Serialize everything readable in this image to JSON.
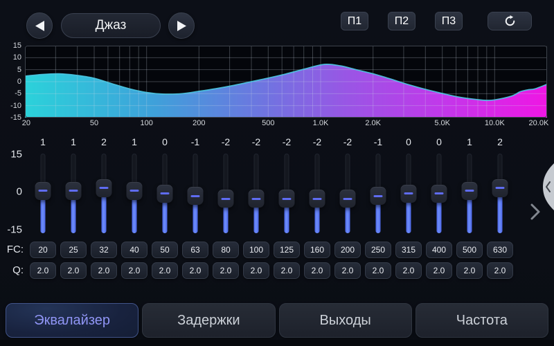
{
  "header": {
    "preset_name": "Джаз",
    "presets": [
      "П1",
      "П2",
      "П3"
    ]
  },
  "chart_data": {
    "type": "area",
    "title": "",
    "xlabel": "",
    "ylabel": "",
    "x_scale": "log",
    "xlim": [
      20,
      20000
    ],
    "ylim": [
      -15,
      15
    ],
    "grid": true,
    "y_ticks": [
      "15",
      "10",
      "5",
      "0",
      "-5",
      "-10",
      "-15"
    ],
    "x_ticks": [
      {
        "label": "20",
        "f": 20
      },
      {
        "label": "50",
        "f": 50
      },
      {
        "label": "100",
        "f": 100
      },
      {
        "label": "200",
        "f": 200
      },
      {
        "label": "500",
        "f": 500
      },
      {
        "label": "1.0K",
        "f": 1000
      },
      {
        "label": "2.0K",
        "f": 2000
      },
      {
        "label": "5.0K",
        "f": 5000
      },
      {
        "label": "10.0K",
        "f": 10000
      },
      {
        "label": "20.0K",
        "f": 20000
      }
    ],
    "points": [
      [
        20,
        2.3
      ],
      [
        25,
        3.0
      ],
      [
        31.5,
        3.3
      ],
      [
        40,
        2.6
      ],
      [
        50,
        1.4
      ],
      [
        63,
        -0.8
      ],
      [
        80,
        -3.0
      ],
      [
        100,
        -4.5
      ],
      [
        125,
        -5.2
      ],
      [
        160,
        -5.0
      ],
      [
        200,
        -4.0
      ],
      [
        250,
        -2.9
      ],
      [
        315,
        -1.6
      ],
      [
        400,
        0.0
      ],
      [
        500,
        1.5
      ],
      [
        630,
        3.2
      ],
      [
        800,
        5.2
      ],
      [
        1050,
        7.2
      ],
      [
        1300,
        6.6
      ],
      [
        1600,
        5.0
      ],
      [
        2000,
        3.3
      ],
      [
        2500,
        1.2
      ],
      [
        3150,
        -1.1
      ],
      [
        4000,
        -3.2
      ],
      [
        5000,
        -4.9
      ],
      [
        6300,
        -6.5
      ],
      [
        8000,
        -7.5
      ],
      [
        9000,
        -7.8
      ],
      [
        10000,
        -7.6
      ],
      [
        12500,
        -6.0
      ],
      [
        14000,
        -4.2
      ],
      [
        15500,
        -3.4
      ],
      [
        17000,
        -3.0
      ],
      [
        20000,
        -1.1
      ]
    ],
    "gradient": [
      {
        "stop": 0,
        "color": "#2bd2da"
      },
      {
        "stop": 0.25,
        "color": "#3fa0da"
      },
      {
        "stop": 0.45,
        "color": "#6d76e0"
      },
      {
        "stop": 0.62,
        "color": "#9a55e5"
      },
      {
        "stop": 0.8,
        "color": "#c238ea"
      },
      {
        "stop": 1,
        "color": "#ef16e4"
      }
    ],
    "line_color": "#4cc9e3"
  },
  "eq": {
    "scale_labels": [
      "15",
      "0",
      "-15"
    ],
    "gain_min": -15,
    "gain_max": 15,
    "fc_label": "FC:",
    "q_label": "Q:",
    "bands": [
      {
        "gain": "1",
        "fc": "20",
        "q": "2.0"
      },
      {
        "gain": "1",
        "fc": "25",
        "q": "2.0"
      },
      {
        "gain": "2",
        "fc": "32",
        "q": "2.0"
      },
      {
        "gain": "1",
        "fc": "40",
        "q": "2.0"
      },
      {
        "gain": "0",
        "fc": "50",
        "q": "2.0"
      },
      {
        "gain": "-1",
        "fc": "63",
        "q": "2.0"
      },
      {
        "gain": "-2",
        "fc": "80",
        "q": "2.0"
      },
      {
        "gain": "-2",
        "fc": "100",
        "q": "2.0"
      },
      {
        "gain": "-2",
        "fc": "125",
        "q": "2.0"
      },
      {
        "gain": "-2",
        "fc": "160",
        "q": "2.0"
      },
      {
        "gain": "-2",
        "fc": "200",
        "q": "2.0"
      },
      {
        "gain": "-1",
        "fc": "250",
        "q": "2.0"
      },
      {
        "gain": "0",
        "fc": "315",
        "q": "2.0"
      },
      {
        "gain": "0",
        "fc": "400",
        "q": "2.0"
      },
      {
        "gain": "1",
        "fc": "500",
        "q": "2.0"
      },
      {
        "gain": "2",
        "fc": "630",
        "q": "2.0"
      }
    ]
  },
  "tabs": [
    {
      "label": "Эквалайзер",
      "name": "tab-equalizer",
      "active": true
    },
    {
      "label": "Задержки",
      "name": "tab-delays",
      "active": false
    },
    {
      "label": "Выходы",
      "name": "tab-outputs",
      "active": false
    },
    {
      "label": "Частота",
      "name": "tab-frequency",
      "active": false
    }
  ],
  "colors": {
    "accent_blue": "#5b7cf6",
    "active_tab_text": "#9095f5",
    "chart_bg": "#04060b",
    "app_bg": "#0b0e15"
  }
}
